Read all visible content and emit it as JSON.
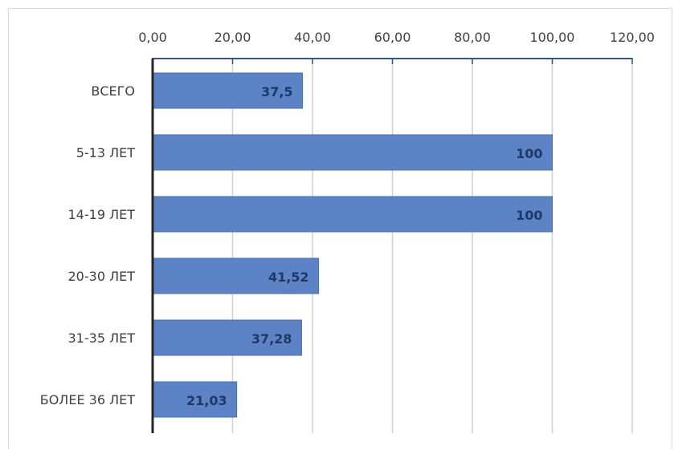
{
  "chart_data": {
    "type": "bar",
    "orientation": "horizontal",
    "categories": [
      "ВСЕГО",
      "5-13 ЛЕТ",
      "14-19 ЛЕТ",
      "20-30 ЛЕТ",
      "31-35 ЛЕТ",
      "БОЛЕЕ 36 ЛЕТ"
    ],
    "values": [
      37.5,
      100,
      100,
      41.52,
      37.28,
      21.03
    ],
    "value_labels": [
      "37,5",
      "100",
      "100",
      "41,52",
      "37,28",
      "21,03"
    ],
    "xlim": [
      0,
      120
    ],
    "x_ticks": [
      0,
      20,
      40,
      60,
      80,
      100,
      120
    ],
    "x_tick_labels": [
      "0,00",
      "20,00",
      "40,00",
      "60,00",
      "80,00",
      "100,00",
      "120,00"
    ],
    "x_axis_position": "top",
    "grid": true,
    "colors": {
      "bar": "#5b83c6",
      "bar_edge": "#4a6fb0",
      "axis": "#2f5597",
      "grid": "#d0d0d0",
      "label": "#1f3864"
    }
  }
}
